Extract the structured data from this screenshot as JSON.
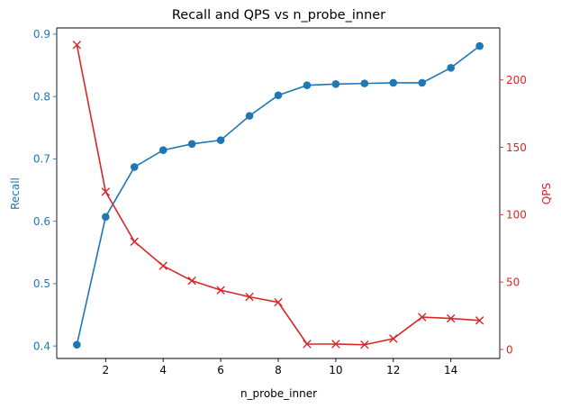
{
  "chart_data": {
    "type": "line",
    "title": "Recall and QPS vs n_probe_inner",
    "xlabel": "n_probe_inner",
    "ylabel_left": "Recall",
    "ylabel_right": "QPS",
    "x": [
      1,
      2,
      3,
      4,
      5,
      6,
      7,
      8,
      9,
      10,
      11,
      12,
      13,
      14,
      15
    ],
    "xlim": [
      0.3,
      15.7
    ],
    "ylim_left": [
      0.38,
      0.91
    ],
    "ylim_right": [
      -6.7,
      238.6
    ],
    "x_ticks": [
      2,
      4,
      6,
      8,
      10,
      12,
      14
    ],
    "y_ticks_left": [
      0.4,
      0.5,
      0.6,
      0.7,
      0.8,
      0.9
    ],
    "y_ticks_right": [
      0,
      50,
      100,
      150,
      200
    ],
    "grid": false,
    "legend": "none",
    "series": [
      {
        "axis": "left",
        "marker": "circle",
        "color": "#1f77b4",
        "values": [
          0.402,
          0.607,
          0.687,
          0.714,
          0.724,
          0.73,
          0.769,
          0.802,
          0.818,
          0.82,
          0.821,
          0.822,
          0.822,
          0.846,
          0.881
        ]
      },
      {
        "axis": "right",
        "marker": "x",
        "color": "#d62728",
        "values": [
          226,
          117,
          80,
          62,
          51,
          44,
          39,
          35,
          4,
          4,
          3.5,
          8,
          24,
          23,
          21.5
        ]
      }
    ]
  }
}
